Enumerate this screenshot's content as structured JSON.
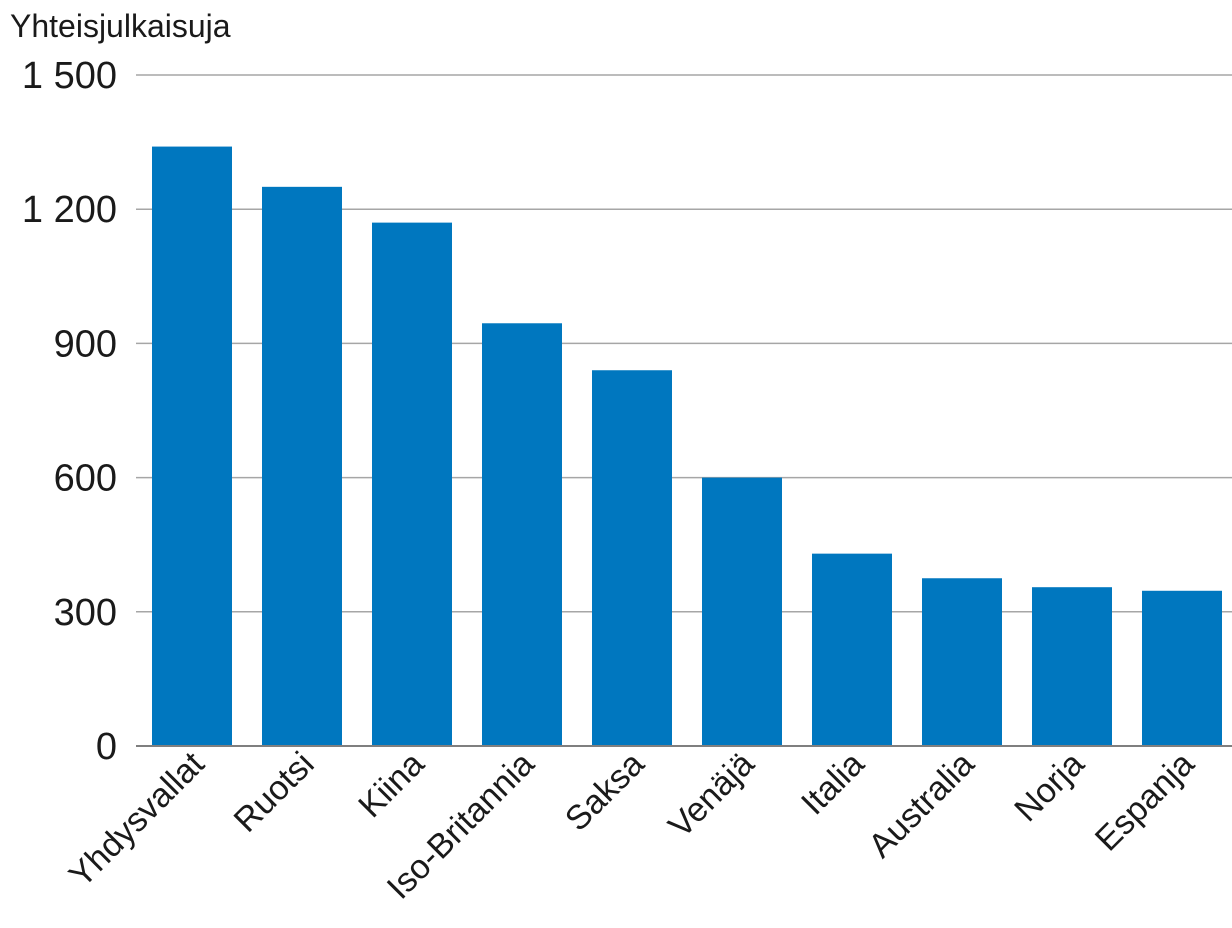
{
  "chart_data": {
    "type": "bar",
    "ylabel": "Yhteisjulkaisuja",
    "xlabel": "",
    "title": "",
    "categories": [
      "Yhdysvallat",
      "Ruotsi",
      "Kiina",
      "Iso-Britannia",
      "Saksa",
      "Venäjä",
      "Italia",
      "Australia",
      "Norja",
      "Espanja"
    ],
    "values": [
      1340,
      1250,
      1170,
      945,
      840,
      600,
      430,
      375,
      355,
      347
    ],
    "ylim": [
      0,
      1500
    ],
    "yticks": [
      0,
      300,
      600,
      900,
      1200,
      1500
    ],
    "ytick_labels": [
      "0",
      "300",
      "600",
      "900",
      "1 200",
      "1 500"
    ],
    "grid": true,
    "legend": "none",
    "bar_color": "#0077bf"
  }
}
